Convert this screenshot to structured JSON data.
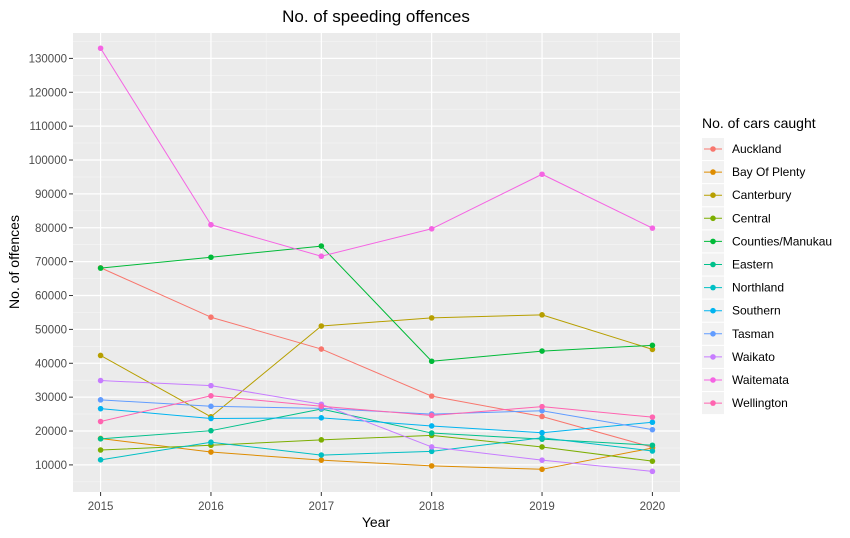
{
  "chart_data": {
    "type": "line",
    "title": "No. of speeding offences",
    "xlabel": "Year",
    "ylabel": "No. of offences",
    "x": [
      2015,
      2016,
      2017,
      2018,
      2019,
      2020
    ],
    "x_tick_labels": [
      "2015",
      "2016",
      "2017",
      "2018",
      "2019",
      "2020"
    ],
    "y_ticks": [
      10000,
      20000,
      30000,
      40000,
      50000,
      60000,
      70000,
      80000,
      90000,
      100000,
      110000,
      120000,
      130000
    ],
    "y_tick_labels": [
      "10000",
      "20000",
      "30000",
      "40000",
      "50000",
      "60000",
      "70000",
      "80000",
      "90000",
      "100000",
      "110000",
      "120000",
      "130000"
    ],
    "xlim": [
      2014.75,
      2020.25
    ],
    "ylim": [
      2000,
      137500
    ],
    "grid": true,
    "legend_title": "No. of cars caught",
    "legend_position": "right",
    "series": [
      {
        "name": "Auckland",
        "color": "#F8766D",
        "values": [
          68200,
          53600,
          44200,
          30300,
          24300,
          15200
        ]
      },
      {
        "name": "Bay Of Plenty",
        "color": "#DE8C00",
        "values": [
          17800,
          13800,
          11400,
          9700,
          8700,
          15000
        ]
      },
      {
        "name": "Canterbury",
        "color": "#B79F00",
        "values": [
          42300,
          24200,
          51000,
          53400,
          54300,
          44100
        ]
      },
      {
        "name": "Central",
        "color": "#7CAE00",
        "values": [
          14400,
          15800,
          17400,
          18700,
          15300,
          11100
        ]
      },
      {
        "name": "Counties/Manukau",
        "color": "#00BA38",
        "values": [
          68100,
          71300,
          74600,
          40600,
          43600,
          45300
        ]
      },
      {
        "name": "Eastern",
        "color": "#00C08B",
        "values": [
          17700,
          20100,
          26500,
          19400,
          17600,
          15800
        ]
      },
      {
        "name": "Northland",
        "color": "#00BFC4",
        "values": [
          11500,
          16700,
          12900,
          14000,
          18000,
          14100
        ]
      },
      {
        "name": "Southern",
        "color": "#00B4F0",
        "values": [
          26600,
          23700,
          23900,
          21500,
          19500,
          22600
        ]
      },
      {
        "name": "Tasman",
        "color": "#619CFF",
        "values": [
          29200,
          27300,
          26700,
          25000,
          26000,
          20400
        ]
      },
      {
        "name": "Waikato",
        "color": "#C77CFF",
        "values": [
          34900,
          33400,
          27900,
          15300,
          11400,
          8100
        ]
      },
      {
        "name": "Waitemata",
        "color": "#F564E3",
        "values": [
          133000,
          80900,
          71600,
          79700,
          95800,
          79900
        ]
      },
      {
        "name": "Wellington",
        "color": "#FF64B0",
        "values": [
          22800,
          30400,
          27300,
          24600,
          27200,
          24100
        ]
      }
    ]
  }
}
